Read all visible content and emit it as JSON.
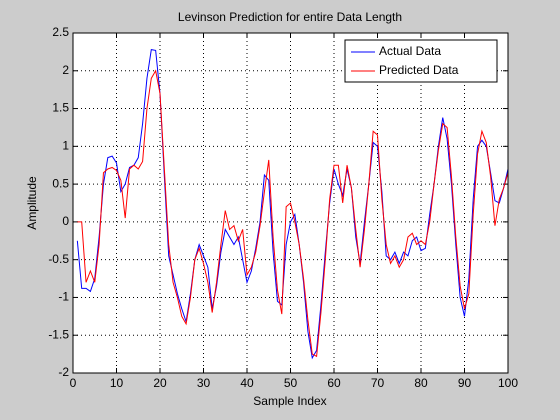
{
  "chart_data": {
    "type": "line",
    "title": "Levinson Prediction for entire Data Length",
    "xlabel": "Sample Index",
    "ylabel": "Amplitude",
    "x": [
      1,
      2,
      3,
      4,
      5,
      6,
      7,
      8,
      9,
      10,
      11,
      12,
      13,
      14,
      15,
      16,
      17,
      18,
      19,
      20,
      21,
      22,
      23,
      24,
      25,
      26,
      27,
      28,
      29,
      30,
      31,
      32,
      33,
      34,
      35,
      36,
      37,
      38,
      39,
      40,
      41,
      42,
      43,
      44,
      45,
      46,
      47,
      48,
      49,
      50,
      51,
      52,
      53,
      54,
      55,
      56,
      57,
      58,
      59,
      60,
      61,
      62,
      63,
      64,
      65,
      66,
      67,
      68,
      69,
      70,
      71,
      72,
      73,
      74,
      75,
      76,
      77,
      78,
      79,
      80,
      81,
      82,
      83,
      84,
      85,
      86,
      87,
      88,
      89,
      90,
      91,
      92,
      93,
      94,
      95,
      96,
      97,
      98,
      99,
      100
    ],
    "series": [
      {
        "name": "Actual Data",
        "color": "#0000ff",
        "values": [
          -0.25,
          -0.88,
          -0.88,
          -0.92,
          -0.75,
          -0.2,
          0.5,
          0.85,
          0.87,
          0.78,
          0.4,
          0.5,
          0.72,
          0.75,
          0.85,
          1.3,
          1.9,
          2.28,
          2.27,
          1.7,
          0.6,
          -0.45,
          -0.7,
          -0.95,
          -1.15,
          -1.32,
          -0.95,
          -0.5,
          -0.3,
          -0.45,
          -0.6,
          -1.15,
          -0.85,
          -0.4,
          -0.1,
          -0.2,
          -0.3,
          -0.2,
          -0.5,
          -0.8,
          -0.65,
          -0.35,
          0.0,
          0.62,
          0.55,
          -0.4,
          -1.05,
          -1.1,
          -0.3,
          0.0,
          0.1,
          -0.3,
          -0.8,
          -1.45,
          -1.8,
          -1.7,
          -1.1,
          -0.4,
          0.25,
          0.7,
          0.5,
          0.35,
          0.7,
          0.45,
          -0.2,
          -0.55,
          0.0,
          0.5,
          1.05,
          1.0,
          0.4,
          -0.45,
          -0.5,
          -0.4,
          -0.55,
          -0.4,
          -0.45,
          -0.25,
          -0.2,
          -0.38,
          -0.35,
          0.1,
          0.5,
          1.0,
          1.38,
          1.1,
          0.5,
          -0.3,
          -1.0,
          -1.25,
          -0.75,
          0.3,
          1.0,
          1.08,
          1.0,
          0.65,
          0.28,
          0.25,
          0.45,
          0.7
        ]
      },
      {
        "name": "Predicted Data",
        "color": "#ff0000",
        "values": [
          0,
          0,
          -0.8,
          -0.65,
          -0.8,
          -0.3,
          0.65,
          0.7,
          0.72,
          0.68,
          0.55,
          0.05,
          0.7,
          0.75,
          0.7,
          0.8,
          1.5,
          1.9,
          2.0,
          1.7,
          0.7,
          -0.3,
          -0.8,
          -1.0,
          -1.25,
          -1.35,
          -1.0,
          -0.5,
          -0.35,
          -0.55,
          -0.8,
          -1.2,
          -0.8,
          -0.3,
          0.15,
          -0.1,
          -0.05,
          -0.25,
          -0.1,
          -0.7,
          -0.6,
          -0.4,
          -0.05,
          0.4,
          0.82,
          -0.2,
          -0.9,
          -1.22,
          0.2,
          0.25,
          0.0,
          -0.3,
          -0.75,
          -1.3,
          -1.75,
          -1.78,
          -1.2,
          -0.5,
          0.3,
          0.75,
          0.75,
          0.25,
          0.75,
          0.45,
          -0.1,
          -0.6,
          -0.1,
          0.5,
          1.2,
          1.15,
          0.3,
          -0.3,
          -0.55,
          -0.45,
          -0.6,
          -0.5,
          -0.2,
          -0.15,
          -0.3,
          -0.25,
          -0.3,
          0.0,
          0.5,
          0.95,
          1.3,
          1.25,
          0.6,
          -0.2,
          -0.85,
          -1.15,
          -0.95,
          0.1,
          0.9,
          1.2,
          1.05,
          0.6,
          -0.05,
          0.3,
          0.45,
          0.65
        ]
      }
    ],
    "xlim": [
      0,
      100
    ],
    "xticks": [
      0,
      10,
      20,
      30,
      40,
      50,
      60,
      70,
      80,
      90,
      100
    ],
    "ylim": [
      -2,
      2.5
    ],
    "yticks": [
      -2,
      -1.5,
      -1,
      -0.5,
      0,
      0.5,
      1,
      1.5,
      2,
      2.5
    ],
    "grid": true,
    "legend": "northeast"
  }
}
